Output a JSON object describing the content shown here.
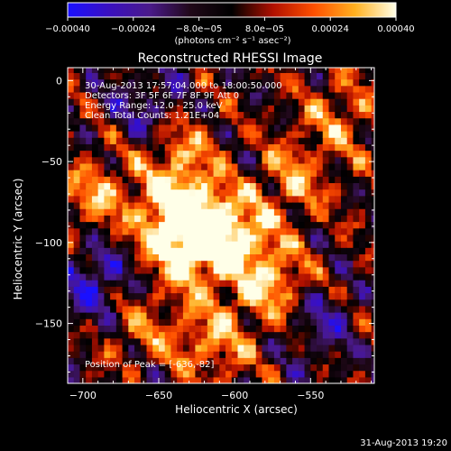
{
  "chart_data": {
    "type": "heatmap",
    "title": "Reconstructed RHESSI Image",
    "xlabel": "Heliocentric X (arcsec)",
    "ylabel": "Heliocentric Y (arcsec)",
    "xlim": [
      -710,
      -508
    ],
    "ylim": [
      -187,
      8
    ],
    "x_ticks": [
      -700,
      -650,
      -600,
      -550
    ],
    "y_ticks": [
      0,
      -50,
      -100,
      -150
    ],
    "x_tick_labels": [
      "−700",
      "−650",
      "−600",
      "−550"
    ],
    "y_tick_labels": [
      "0",
      "−50",
      "−100",
      "−150"
    ],
    "colorbar": {
      "range": [
        -0.0004,
        0.0004
      ],
      "ticks": [
        -0.0004,
        -0.00024,
        -8e-05,
        8e-05,
        0.00024,
        0.0004
      ],
      "tick_labels": [
        "−0.00040",
        "−0.00024",
        "−8.0e−05",
        "8.0e−05",
        "0.00024",
        "0.00040"
      ],
      "colors": [
        "#1a10ff",
        "#3a10c0",
        "#4a1a8a",
        "#200818",
        "#000000",
        "#b01000",
        "#ff5000",
        "#ffb020",
        "#ffffe8"
      ]
    },
    "units_label": "(photons cm⁻² s⁻¹ asec⁻²)",
    "annotations": [
      "30-Aug-2013 17:57:04.000 to 18:00:50.000",
      "Detectors: 3F 5F 6F 7F 8F 9F Att 0",
      "Energy Range: 12.0 - 25.0 keV",
      "Clean    Total Counts: 1.21E+04"
    ],
    "peak_label": "Position of Peak = [-636,-82]",
    "peak": {
      "x": -636,
      "y": -82
    },
    "hotspots": [
      {
        "x": -630,
        "y": -100,
        "v": 0.0004
      },
      {
        "x": -636,
        "y": -82,
        "v": 0.0004
      },
      {
        "x": -600,
        "y": -95,
        "v": 0.00032
      },
      {
        "x": -575,
        "y": -125,
        "v": 0.0003
      },
      {
        "x": -640,
        "y": -40,
        "v": 0.00028
      },
      {
        "x": -615,
        "y": -160,
        "v": 0.00026
      },
      {
        "x": -560,
        "y": -60,
        "v": 0.00022
      },
      {
        "x": -690,
        "y": -70,
        "v": 0.00024
      },
      {
        "x": -530,
        "y": -20,
        "v": 0.0002
      },
      {
        "x": -665,
        "y": -150,
        "v": 0.00018
      }
    ],
    "cold_regions": [
      {
        "x": -690,
        "y": -125,
        "v": -0.0003
      },
      {
        "x": -655,
        "y": -20,
        "v": -0.00026
      },
      {
        "x": -545,
        "y": -150,
        "v": -0.0002
      }
    ]
  },
  "footer": {
    "timestamp": "31-Aug-2013 19:20"
  }
}
